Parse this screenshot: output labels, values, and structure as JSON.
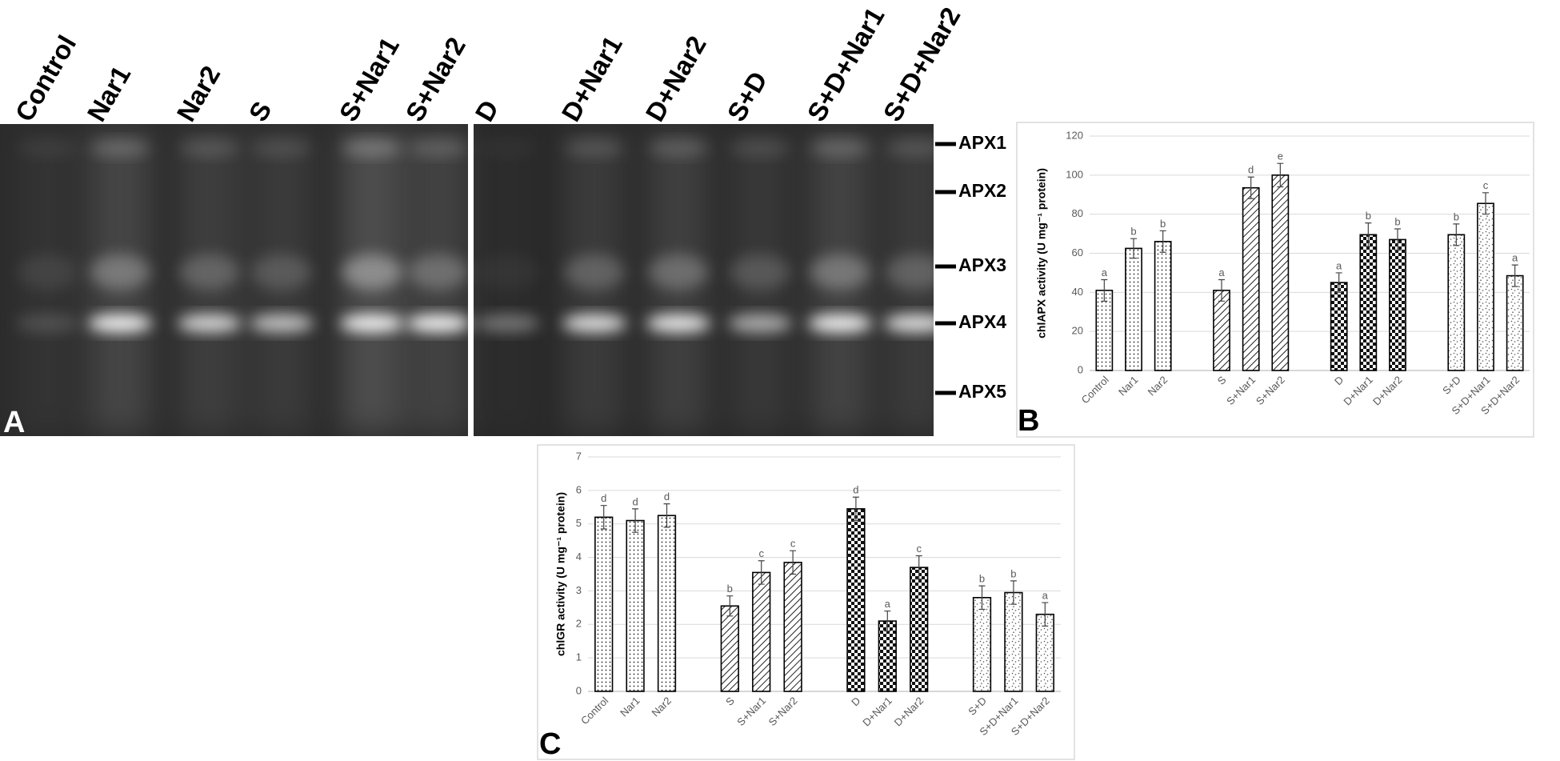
{
  "gel": {
    "panel_label": "A",
    "lanes": [
      "Control",
      "Nar1",
      "Nar2",
      "S",
      "S+Nar1",
      "S+Nar2",
      "D",
      "D+Nar1",
      "D+Nar2",
      "S+D",
      "S+D+Nar1",
      "S+D+Nar2"
    ],
    "bands": [
      "APX1",
      "APX2",
      "APX3",
      "APX4",
      "APX5"
    ]
  },
  "chart_data": [
    {
      "type": "bar",
      "panel_label": "B",
      "y_label": "chlAPX activity (U mg⁻¹ protein)",
      "categories": [
        "Control",
        "Nar1",
        "Nar2",
        null,
        "S",
        "S+Nar1",
        "S+Nar2",
        null,
        "D",
        "D+Nar1",
        "D+Nar2",
        null,
        "S+D",
        "S+D+Nar1",
        "S+D+Nar2"
      ],
      "values": [
        41,
        62.5,
        66,
        null,
        41,
        93.5,
        100,
        null,
        45,
        69.5,
        67,
        null,
        69.5,
        85.5,
        48.5
      ],
      "errors": [
        5.5,
        5,
        5.5,
        null,
        5.5,
        5.5,
        6,
        null,
        5,
        6,
        5.5,
        null,
        5.5,
        5.5,
        5.5
      ],
      "letters": [
        "a",
        "b",
        "b",
        null,
        "a",
        "d",
        "e",
        null,
        "a",
        "b",
        "b",
        null,
        "b",
        "c",
        "a"
      ],
      "fill_patterns": [
        "dots",
        "dots",
        "dots",
        null,
        "hatch",
        "hatch",
        "hatch",
        null,
        "checker",
        "checker",
        "checker",
        null,
        "speckle",
        "speckle",
        "speckle"
      ],
      "ylim": [
        0,
        120
      ],
      "yticks": [
        0,
        20,
        40,
        60,
        80,
        100,
        120
      ],
      "grid": true
    },
    {
      "type": "bar",
      "panel_label": "C",
      "y_label": "chlGR activity (U mg⁻¹ protein)",
      "categories": [
        "Control",
        "Nar1",
        "Nar2",
        null,
        "S",
        "S+Nar1",
        "S+Nar2",
        null,
        "D",
        "D+Nar1",
        "D+Nar2",
        null,
        "S+D",
        "S+D+Nar1",
        "S+D+Nar2"
      ],
      "values": [
        5.2,
        5.1,
        5.25,
        null,
        2.55,
        3.55,
        3.85,
        null,
        5.45,
        2.1,
        3.7,
        null,
        2.8,
        2.95,
        2.3
      ],
      "errors": [
        0.35,
        0.35,
        0.35,
        null,
        0.3,
        0.35,
        0.35,
        null,
        0.35,
        0.3,
        0.35,
        null,
        0.35,
        0.35,
        0.35
      ],
      "letters": [
        "d",
        "d",
        "d",
        null,
        "b",
        "c",
        "c",
        null,
        "d",
        "a",
        "c",
        null,
        "b",
        "b",
        "a"
      ],
      "fill_patterns": [
        "dots",
        "dots",
        "dots",
        null,
        "hatch",
        "hatch",
        "hatch",
        null,
        "checker",
        "checker",
        "checker",
        null,
        "speckle",
        "speckle",
        "speckle"
      ],
      "ylim": [
        0,
        7
      ],
      "yticks": [
        0,
        1,
        2,
        3,
        4,
        5,
        6,
        7
      ],
      "grid": true
    }
  ]
}
